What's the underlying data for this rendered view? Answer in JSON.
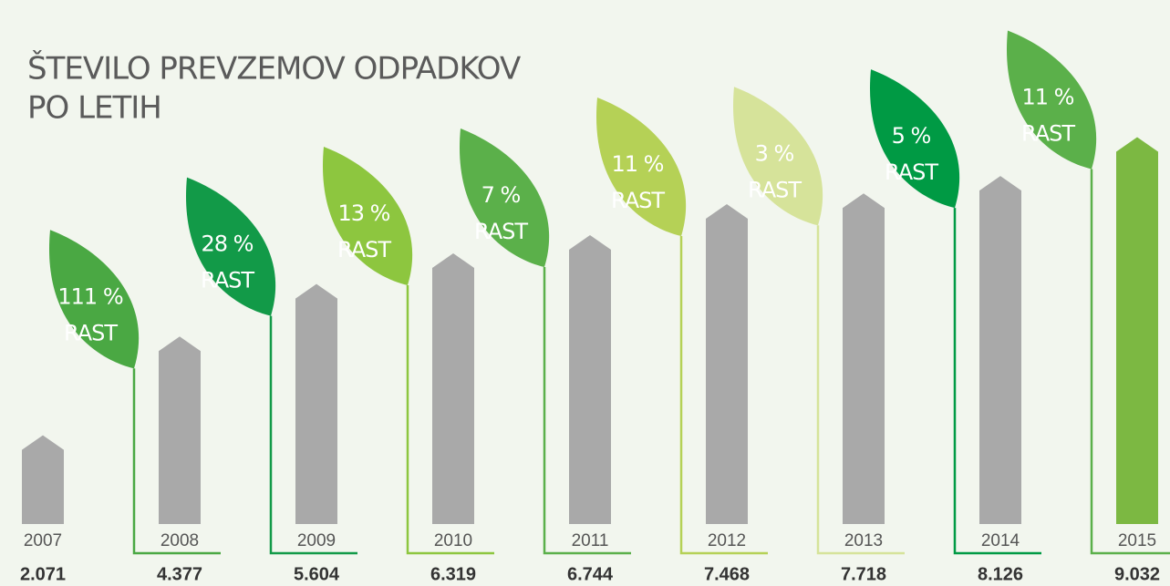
{
  "chart_data": {
    "type": "bar",
    "title": [
      "ŠTEVILO PREVZEMOV ODPADKOV",
      "PO LETIH"
    ],
    "categories": [
      "2007",
      "2008",
      "2009",
      "2010",
      "2011",
      "2012",
      "2013",
      "2014",
      "2015"
    ],
    "values": [
      2071,
      4377,
      5604,
      6319,
      6744,
      7468,
      7718,
      8126,
      9032
    ],
    "value_labels": [
      "2.071",
      "4.377",
      "5.604",
      "6.319",
      "6.744",
      "7.468",
      "7.718",
      "8.126",
      "9.032"
    ],
    "colors": [
      "#a9a9a9",
      "#a9a9a9",
      "#a9a9a9",
      "#a9a9a9",
      "#a9a9a9",
      "#a9a9a9",
      "#a9a9a9",
      "#a9a9a9",
      "#7cb842"
    ],
    "ylim": [
      0,
      10000
    ],
    "growth": {
      "word": "RAST",
      "values": [
        111,
        28,
        13,
        7,
        11,
        3,
        5,
        11
      ],
      "value_labels": [
        "111 %",
        "28 %",
        "13 %",
        "7 %",
        "11 %",
        "3 %",
        "5 %",
        "11 %"
      ],
      "colors": [
        "#4aa843",
        "#129a48",
        "#8dc63f",
        "#5bb04a",
        "#b5d156",
        "#d6e39a",
        "#009a44",
        "#5bb04a"
      ]
    }
  }
}
